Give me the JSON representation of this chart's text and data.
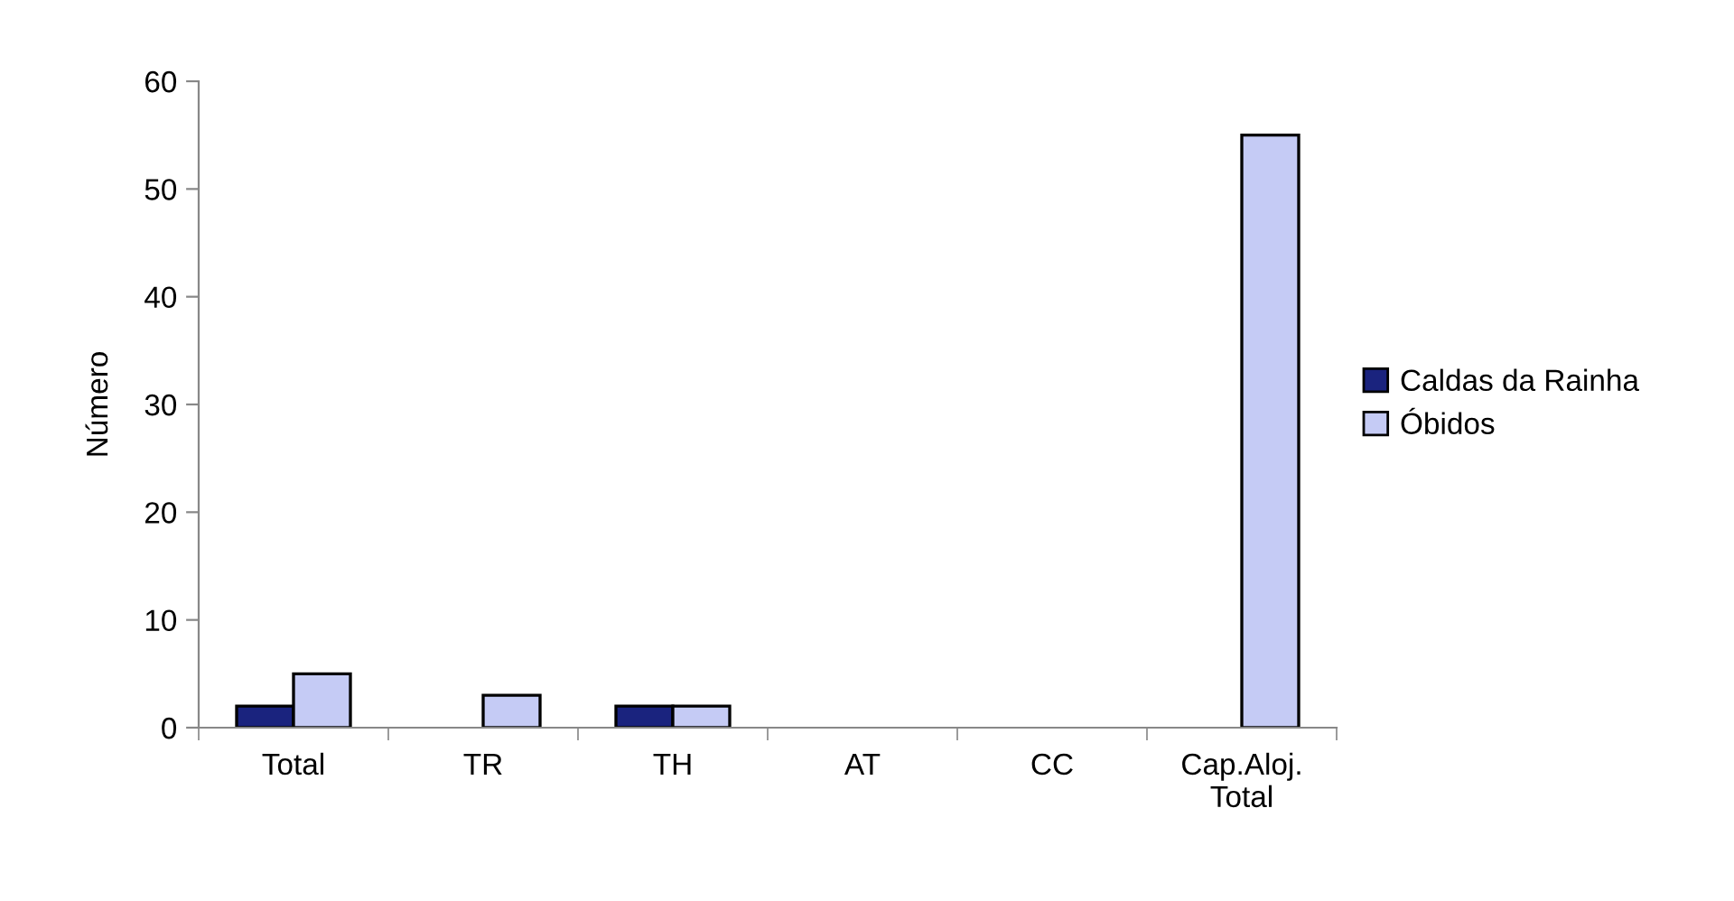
{
  "chart_data": {
    "type": "bar",
    "ylabel": "Número",
    "categories": [
      "Total",
      "TR",
      "TH",
      "AT",
      "CC",
      "Cap.Aloj.\nTotal"
    ],
    "series": [
      {
        "name": "Caldas da Rainha",
        "color": "#1a237e",
        "values": [
          2,
          0,
          2,
          0,
          0,
          0
        ]
      },
      {
        "name": "Óbidos",
        "color": "#c5cbf5",
        "values": [
          5,
          3,
          2,
          0,
          0,
          55
        ]
      }
    ],
    "ylim": [
      0,
      60
    ],
    "yticks": [
      0,
      10,
      20,
      30,
      40,
      50,
      60
    ],
    "grid": false,
    "legend": "right"
  }
}
